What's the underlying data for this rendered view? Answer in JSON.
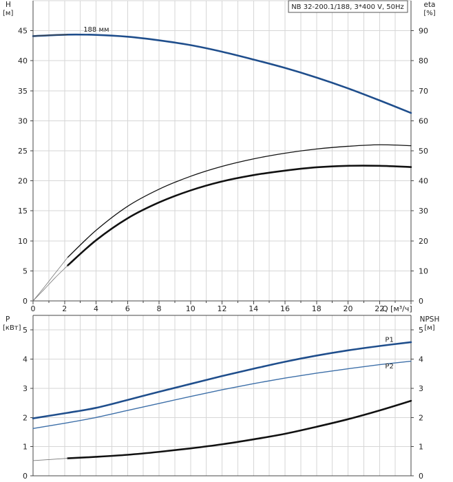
{
  "chart_data": [
    {
      "type": "line",
      "title": "NB 32-200.1/188, 3*400 V, 50Hz",
      "ylabel_left": "H",
      "yunit_left": "[м]",
      "ylabel_right": "eta",
      "yunit_right": "[%]",
      "xlabel": "Q [м³/ч]",
      "xlim": [
        0,
        24
      ],
      "ylim_left": [
        0,
        50
      ],
      "ylim_right": [
        0,
        100
      ],
      "x_ticks": [
        "0",
        "2",
        "4",
        "6",
        "8",
        "10",
        "12",
        "14",
        "16",
        "18",
        "20",
        "22"
      ],
      "y_ticks_left": [
        "0",
        "5",
        "10",
        "15",
        "20",
        "25",
        "30",
        "35",
        "40",
        "45"
      ],
      "y_ticks_right": [
        "0",
        "10",
        "20",
        "30",
        "40",
        "50",
        "60",
        "70",
        "80",
        "90"
      ],
      "grid": true,
      "annotations": [
        {
          "text": "188 мм",
          "x": 3.2,
          "y": 44.6
        }
      ],
      "series": [
        {
          "axis": "left",
          "color": "#1f4e8c",
          "width": 2.6,
          "x": [
            0,
            2.2,
            4,
            6,
            8,
            10,
            12,
            14,
            16,
            18,
            20,
            22,
            24
          ],
          "y": [
            44.1,
            44.35,
            44.3,
            44.0,
            43.4,
            42.6,
            41.5,
            40.2,
            38.8,
            37.2,
            35.4,
            33.4,
            31.3
          ]
        },
        {
          "axis": "left",
          "color": "#444444",
          "width": 1,
          "x": [
            0,
            1,
            2.2
          ],
          "y": [
            44.1,
            44.25,
            44.35
          ]
        },
        {
          "axis": "right",
          "color": "#111111",
          "width": 1.3,
          "x": [
            2.2,
            4,
            6,
            8,
            10,
            12,
            14,
            16,
            18,
            20,
            22,
            24
          ],
          "y": [
            14.5,
            23.5,
            31.5,
            37.2,
            41.5,
            44.8,
            47.3,
            49.2,
            50.6,
            51.5,
            52.0,
            51.7
          ]
        },
        {
          "axis": "right",
          "color": "#111111",
          "width": 2.6,
          "x": [
            2.2,
            4,
            6,
            8,
            10,
            12,
            14,
            16,
            18,
            20,
            22,
            24
          ],
          "y": [
            11.8,
            20.2,
            27.5,
            32.8,
            36.8,
            39.8,
            41.9,
            43.4,
            44.5,
            45.0,
            45.0,
            44.6
          ]
        },
        {
          "axis": "right",
          "color": "#777777",
          "width": 0.8,
          "x": [
            0,
            0.7,
            1.4,
            2.2
          ],
          "y": [
            0,
            4.5,
            9.2,
            14.5
          ]
        },
        {
          "axis": "right",
          "color": "#777777",
          "width": 0.8,
          "x": [
            0,
            0.7,
            1.4,
            2.2
          ],
          "y": [
            0,
            3.8,
            7.7,
            11.8
          ]
        }
      ]
    },
    {
      "type": "line",
      "ylabel_left": "P",
      "yunit_left": "[кВт]",
      "ylabel_right": "NPSH",
      "yunit_right": "[м]",
      "xlim": [
        0,
        24
      ],
      "ylim_left": [
        0,
        5.5
      ],
      "ylim_right": [
        0,
        5.5
      ],
      "y_ticks_left": [
        "0",
        "1",
        "2",
        "3",
        "4",
        "5"
      ],
      "y_ticks_right": [
        "0",
        "1",
        "2",
        "3",
        "4",
        "5"
      ],
      "grid": true,
      "series": [
        {
          "name": "P1",
          "axis": "left",
          "color": "#1f4e8c",
          "width": 2.6,
          "x": [
            0,
            2.2,
            4,
            6,
            8,
            10,
            12,
            14,
            16,
            18,
            20,
            22,
            24
          ],
          "y": [
            1.97,
            2.16,
            2.33,
            2.6,
            2.88,
            3.15,
            3.42,
            3.67,
            3.91,
            4.12,
            4.3,
            4.45,
            4.58
          ]
        },
        {
          "name": "P2",
          "axis": "left",
          "color": "#3d6fa8",
          "width": 1.4,
          "x": [
            0,
            2.2,
            4,
            6,
            8,
            10,
            12,
            14,
            16,
            18,
            20,
            22,
            24
          ],
          "y": [
            1.62,
            1.82,
            2.0,
            2.24,
            2.48,
            2.72,
            2.95,
            3.16,
            3.35,
            3.52,
            3.67,
            3.81,
            3.93
          ]
        },
        {
          "axis": "right",
          "color": "#111111",
          "width": 2.6,
          "x": [
            2.2,
            4,
            6,
            8,
            10,
            12,
            14,
            16,
            18,
            20,
            22,
            24
          ],
          "y": [
            0.6,
            0.65,
            0.72,
            0.82,
            0.94,
            1.08,
            1.25,
            1.44,
            1.68,
            1.94,
            2.24,
            2.57
          ]
        },
        {
          "axis": "right",
          "color": "#777777",
          "width": 0.9,
          "x": [
            0,
            2.2
          ],
          "y": [
            0.52,
            0.6
          ]
        }
      ],
      "line_labels": [
        {
          "text": "P1",
          "color": "#1f4e8c",
          "x": 22.9,
          "y": 4.68
        },
        {
          "text": "P2",
          "color": "#1f4e8c",
          "x": 22.9,
          "y": 3.78
        }
      ]
    }
  ]
}
